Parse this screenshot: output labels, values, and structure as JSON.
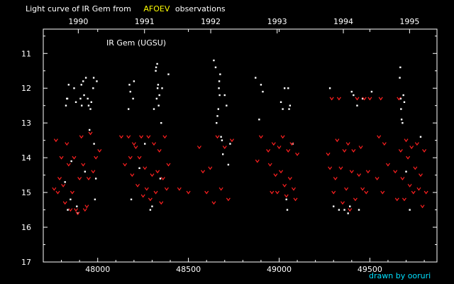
{
  "colors": {
    "background": "#000000",
    "frame": "#ffffff",
    "positive": "#ffffff",
    "upper_limit": "#ff2020",
    "highlight": "#ffff00",
    "credit": "#00e0ff"
  },
  "chart_data": {
    "type": "scatter",
    "title_prefix": "Light curve of IR Gem from",
    "title_highlight": "AFOEV",
    "title_suffix": "observations",
    "star_label": "IR Gem (UGSU)",
    "credit": "drawn by ooruri",
    "xlabel": "",
    "ylabel": "",
    "xlim": [
      47700,
      49870
    ],
    "ylim": [
      17,
      10.3
    ],
    "y_inverted": true,
    "grid": false,
    "x_ticks": [
      48000,
      48500,
      49000,
      49500
    ],
    "x_tick_labels": [
      "48000",
      "48500",
      "49000",
      "49500"
    ],
    "y_ticks": [
      11,
      12,
      13,
      14,
      15,
      16,
      17
    ],
    "y_tick_labels": [
      "11",
      "12",
      "13",
      "14",
      "15",
      "16",
      "17"
    ],
    "years": [
      {
        "label": "1990",
        "jd": 47893
      },
      {
        "label": "1991",
        "jd": 48258
      },
      {
        "label": "1992",
        "jd": 48623
      },
      {
        "label": "1993",
        "jd": 48989
      },
      {
        "label": "1994",
        "jd": 49354
      },
      {
        "label": "1995",
        "jd": 49719
      }
    ],
    "series": [
      {
        "marker": "dot",
        "x": [
          47820,
          47825,
          47830,
          47833,
          47835,
          47840,
          47850,
          47855,
          47870,
          47880,
          47885,
          47890,
          47905,
          47910,
          47912,
          47920,
          47925,
          47930,
          47935,
          47945,
          47950,
          47955,
          47960,
          47965,
          47975,
          47978,
          47980,
          47985,
          47990,
          47995,
          48170,
          48175,
          48180,
          48185,
          48195,
          48200,
          48230,
          48260,
          48290,
          48300,
          48310,
          48320,
          48322,
          48325,
          48328,
          48330,
          48333,
          48336,
          48340,
          48345,
          48350,
          48355,
          48390,
          48640,
          48650,
          48655,
          48660,
          48665,
          48668,
          48670,
          48672,
          48675,
          48680,
          48685,
          48690,
          48700,
          48710,
          48720,
          48730,
          48870,
          48890,
          48900,
          48910,
          49010,
          49020,
          49030,
          49040,
          49045,
          49050,
          49055,
          49060,
          49075,
          49280,
          49300,
          49330,
          49360,
          49380,
          49390,
          49400,
          49410,
          49430,
          49440,
          49460,
          49510,
          49665,
          49668,
          49670,
          49672,
          49675,
          49680,
          49685,
          49690,
          49700,
          49720,
          49780
        ],
        "y": [
          14.7,
          12.5,
          12.3,
          12.3,
          15.5,
          11.9,
          15.2,
          14.1,
          12.0,
          12.4,
          15.4,
          15.6,
          12.3,
          11.9,
          12.5,
          11.8,
          12.2,
          14.4,
          11.7,
          12.3,
          12.5,
          13.2,
          12.6,
          12.4,
          12.0,
          11.7,
          13.6,
          15.2,
          14.6,
          11.8,
          12.6,
          11.9,
          12.1,
          15.2,
          12.3,
          11.8,
          14.3,
          13.6,
          15.5,
          15.4,
          12.6,
          11.5,
          11.4,
          12.3,
          11.3,
          12.0,
          11.9,
          12.5,
          12.2,
          14.6,
          13.0,
          12.0,
          11.6,
          11.2,
          11.4,
          13.0,
          12.8,
          12.6,
          12.0,
          11.8,
          12.2,
          11.6,
          13.4,
          13.5,
          13.9,
          12.2,
          12.5,
          14.2,
          13.6,
          11.7,
          12.9,
          11.9,
          12.1,
          12.4,
          12.6,
          12.0,
          15.2,
          15.5,
          12.0,
          12.6,
          12.5,
          13.6,
          12.0,
          15.4,
          15.5,
          15.5,
          15.6,
          15.4,
          12.1,
          12.2,
          12.5,
          15.5,
          12.3,
          12.1,
          11.7,
          11.4,
          12.3,
          12.6,
          12.9,
          13.0,
          12.2,
          12.4,
          14.4,
          15.5,
          13.4
        ]
      },
      {
        "marker": "upper-limit",
        "x": [
          47760,
          47770,
          47780,
          47790,
          47800,
          47810,
          47820,
          47830,
          47840,
          47850,
          47860,
          47870,
          47880,
          47890,
          47900,
          47910,
          47920,
          47930,
          47940,
          47950,
          47960,
          47975,
          47990,
          48010,
          48130,
          48150,
          48170,
          48180,
          48190,
          48200,
          48210,
          48220,
          48230,
          48240,
          48250,
          48260,
          48270,
          48280,
          48290,
          48300,
          48310,
          48320,
          48330,
          48340,
          48350,
          48360,
          48370,
          48380,
          48390,
          48450,
          48500,
          48560,
          48580,
          48600,
          48620,
          48640,
          48660,
          48680,
          48700,
          48720,
          48740,
          48880,
          48900,
          48940,
          48950,
          48960,
          48970,
          48980,
          48990,
          49000,
          49010,
          49020,
          49030,
          49040,
          49050,
          49060,
          49070,
          49080,
          49090,
          49100,
          49270,
          49280,
          49290,
          49300,
          49310,
          49320,
          49330,
          49340,
          49350,
          49360,
          49370,
          49380,
          49390,
          49400,
          49410,
          49420,
          49430,
          49440,
          49450,
          49460,
          49470,
          49480,
          49490,
          49500,
          49540,
          49550,
          49560,
          49570,
          49580,
          49600,
          49640,
          49650,
          49660,
          49670,
          49680,
          49690,
          49700,
          49710,
          49720,
          49730,
          49740,
          49750,
          49760,
          49770,
          49780,
          49790,
          49800,
          49810
        ],
        "y": [
          14.9,
          13.5,
          15.0,
          14.6,
          14.0,
          14.8,
          15.3,
          13.6,
          14.2,
          15.5,
          15.0,
          14.0,
          15.5,
          15.6,
          14.6,
          13.4,
          14.2,
          15.5,
          15.4,
          14.6,
          13.3,
          14.4,
          14.0,
          13.8,
          13.4,
          14.2,
          13.4,
          14.0,
          14.5,
          13.6,
          13.7,
          14.8,
          14.0,
          13.4,
          15.1,
          14.3,
          14.9,
          13.4,
          15.2,
          14.5,
          13.6,
          15.0,
          14.4,
          13.8,
          15.3,
          14.6,
          13.4,
          14.9,
          14.2,
          14.9,
          15.0,
          13.7,
          14.4,
          15.0,
          14.3,
          15.3,
          13.4,
          14.9,
          13.7,
          15.2,
          13.5,
          14.1,
          13.4,
          13.8,
          14.2,
          15.0,
          13.6,
          14.5,
          15.0,
          13.7,
          14.4,
          13.4,
          14.8,
          15.1,
          13.8,
          14.6,
          13.6,
          14.9,
          15.2,
          13.9,
          13.9,
          14.3,
          12.3,
          15.0,
          14.6,
          13.5,
          12.3,
          14.3,
          15.3,
          13.8,
          14.9,
          13.6,
          15.5,
          14.4,
          13.8,
          15.2,
          12.3,
          14.5,
          13.7,
          14.9,
          12.3,
          15.0,
          14.4,
          12.3,
          14.6,
          13.4,
          12.3,
          15.0,
          13.6,
          14.2,
          14.4,
          15.2,
          12.3,
          13.8,
          14.6,
          15.2,
          13.5,
          14.0,
          14.8,
          13.7,
          15.0,
          14.3,
          13.6,
          14.9,
          14.5,
          15.4,
          13.8,
          15.0
        ]
      }
    ]
  }
}
